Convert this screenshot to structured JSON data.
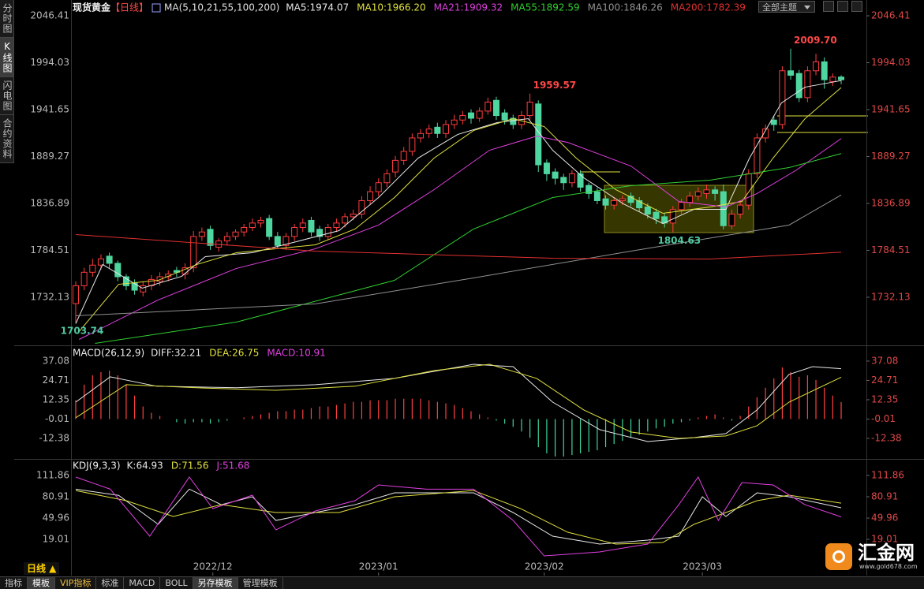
{
  "sidebar": [
    "分时图",
    "K线图",
    "闪电图",
    "合约资料"
  ],
  "theme_button": "全部主题",
  "period_button": "日线 ▲",
  "tabs": [
    "指标",
    "模板",
    "VIP指标",
    "标准",
    "MACD",
    "BOLL",
    "另存模板",
    "管理模板"
  ],
  "logo": {
    "name": "汇金网",
    "url": "www.gold678.com"
  },
  "chart_data": [
    {
      "type": "candlestick",
      "title": "现货黄金",
      "subtitle": "【日线】",
      "indicator": "MA(5,10,21,55,100,200)",
      "up_color": "#ff3c3c",
      "down_color": "#4fd6a0",
      "xlim": [
        -0.56,
        94
      ],
      "ylim": [
        1678.4,
        2057.0
      ],
      "yticks": [
        2046.41,
        1994.03,
        1941.65,
        1889.27,
        1836.89,
        1784.51,
        1732.13
      ],
      "open": [
        1725,
        1745,
        1760,
        1768,
        1778,
        1770,
        1755,
        1748,
        1738,
        1745,
        1750,
        1755,
        1762,
        1758,
        1765,
        1800,
        1808,
        1788,
        1795,
        1800,
        1805,
        1810,
        1815,
        1820,
        1800,
        1790,
        1800,
        1810,
        1818,
        1808,
        1800,
        1810,
        1815,
        1822,
        1825,
        1840,
        1850,
        1860,
        1872,
        1885,
        1895,
        1910,
        1915,
        1922,
        1915,
        1925,
        1930,
        1938,
        1932,
        1940,
        1952,
        1938,
        1932,
        1925,
        1935,
        1948,
        1882,
        1872,
        1866,
        1860,
        1870,
        1857,
        1850,
        1842,
        1835,
        1840,
        1845,
        1840,
        1833,
        1827,
        1822,
        1815,
        1830,
        1838,
        1845,
        1848,
        1852,
        1850,
        1812,
        1825,
        1835,
        1870,
        1910,
        1930,
        1925,
        1985,
        1982,
        1955,
        1985,
        1995,
        1973,
        1978
      ],
      "high": [
        1750,
        1765,
        1775,
        1780,
        1782,
        1773,
        1758,
        1752,
        1750,
        1757,
        1760,
        1762,
        1766,
        1770,
        1806,
        1810,
        1812,
        1798,
        1805,
        1808,
        1814,
        1820,
        1822,
        1824,
        1805,
        1804,
        1814,
        1820,
        1822,
        1812,
        1814,
        1820,
        1826,
        1830,
        1845,
        1856,
        1865,
        1875,
        1890,
        1900,
        1915,
        1920,
        1925,
        1927,
        1930,
        1936,
        1940,
        1942,
        1944,
        1955,
        1956,
        1942,
        1936,
        1940,
        1959.57,
        1952,
        1886,
        1876,
        1870,
        1874,
        1874,
        1860,
        1854,
        1846,
        1844,
        1846,
        1849,
        1844,
        1837,
        1831,
        1826,
        1834,
        1842,
        1850,
        1855,
        1858,
        1856,
        1858,
        1830,
        1840,
        1875,
        1915,
        1925,
        1935,
        1990,
        2009.7,
        1986,
        1990,
        2004,
        2000,
        1982,
        1980
      ],
      "low": [
        1703.74,
        1740,
        1755,
        1763,
        1765,
        1750,
        1740,
        1735,
        1733,
        1740,
        1745,
        1750,
        1755,
        1752,
        1760,
        1795,
        1785,
        1783,
        1790,
        1796,
        1800,
        1806,
        1810,
        1796,
        1786,
        1785,
        1795,
        1805,
        1800,
        1795,
        1796,
        1805,
        1810,
        1818,
        1820,
        1835,
        1845,
        1855,
        1866,
        1880,
        1890,
        1905,
        1910,
        1910,
        1910,
        1920,
        1925,
        1926,
        1928,
        1936,
        1930,
        1925,
        1920,
        1920,
        1930,
        1872,
        1862,
        1858,
        1852,
        1855,
        1850,
        1842,
        1836,
        1830,
        1830,
        1835,
        1834,
        1828,
        1820,
        1814,
        1810,
        1804.63,
        1825,
        1833,
        1840,
        1842,
        1840,
        1808,
        1808,
        1820,
        1830,
        1865,
        1905,
        1918,
        1920,
        1975,
        1950,
        1950,
        1980,
        1965,
        1968,
        1970
      ],
      "close": [
        1745,
        1760,
        1768,
        1775,
        1770,
        1755,
        1745,
        1740,
        1745,
        1752,
        1755,
        1758,
        1760,
        1765,
        1800,
        1805,
        1790,
        1795,
        1800,
        1805,
        1810,
        1815,
        1818,
        1800,
        1790,
        1800,
        1810,
        1815,
        1805,
        1800,
        1810,
        1815,
        1822,
        1825,
        1840,
        1850,
        1860,
        1870,
        1885,
        1895,
        1910,
        1915,
        1920,
        1915,
        1925,
        1930,
        1935,
        1932,
        1940,
        1950,
        1935,
        1930,
        1925,
        1935,
        1950,
        1880,
        1870,
        1865,
        1860,
        1870,
        1855,
        1848,
        1840,
        1835,
        1840,
        1842,
        1838,
        1832,
        1825,
        1820,
        1815,
        1830,
        1838,
        1845,
        1850,
        1852,
        1848,
        1812,
        1825,
        1835,
        1870,
        1910,
        1920,
        1925,
        1985,
        1980,
        1955,
        1985,
        1995,
        1975,
        1978,
        1975
      ],
      "series": [
        {
          "name": "MA5:1974.07",
          "color": "#e8e8e8",
          "x": [
            0,
            3.2,
            7.9,
            12.6,
            15.4,
            21,
            26.6,
            31.3,
            36,
            40.7,
            45.4,
            50.1,
            53.8,
            56.7,
            60.4,
            65.1,
            69.8,
            73.5,
            77.3,
            80.1,
            83.9,
            86.7,
            91
          ],
          "values": [
            1702.6,
            1768.7,
            1742.3,
            1755.5,
            1777.5,
            1781.9,
            1795.1,
            1806.5,
            1843.5,
            1887.5,
            1913.9,
            1927.1,
            1931.5,
            1896.3,
            1865.5,
            1836.5,
            1814.4,
            1830.3,
            1830.3,
            1887.5,
            1949.1,
            1966.7,
            1974.07
          ]
        },
        {
          "name": "MA10:1966.20",
          "color": "#e0e040",
          "x": [
            0.4,
            5.1,
            9.8,
            14.4,
            19.1,
            23.8,
            28.5,
            33.2,
            37.9,
            42.6,
            47.3,
            52,
            55.7,
            59.5,
            64.2,
            69.8,
            75.4,
            79.2,
            82.9,
            86.7,
            91
          ],
          "values": [
            1693.8,
            1746.6,
            1751,
            1768.7,
            1781.9,
            1786.3,
            1790.7,
            1808.3,
            1843.5,
            1887.5,
            1918.3,
            1931.5,
            1922.7,
            1887.5,
            1852.3,
            1825.9,
            1832.9,
            1839.1,
            1887.5,
            1931.5,
            1966.2
          ]
        },
        {
          "name": "MA21:1909.32",
          "color": "#e040e0",
          "x": [
            0.4,
            9.8,
            19.1,
            28.5,
            36,
            42.6,
            49.2,
            54.8,
            58.5,
            66,
            71.7,
            77.3,
            81,
            85.7,
            91
          ],
          "values": [
            1685,
            1729.1,
            1764.3,
            1786.3,
            1812.7,
            1852.3,
            1896.3,
            1912,
            1905,
            1878.7,
            1839.1,
            1832.9,
            1847.9,
            1874.3,
            1909.32
          ]
        },
        {
          "name": "MA55:1892.59",
          "color": "#30d030",
          "x": [
            2.3,
            19.1,
            37.9,
            47.3,
            56.7,
            66,
            75.4,
            84.8,
            91
          ],
          "values": [
            1680.6,
            1704.4,
            1751,
            1808.3,
            1843.5,
            1856.7,
            1862.9,
            1876.9,
            1892.59
          ]
        },
        {
          "name": "MA100:1846.26",
          "color": "#909090",
          "x": [
            0,
            28.5,
            47.3,
            66,
            84.8,
            91
          ],
          "values": [
            1711.4,
            1724.7,
            1753.7,
            1783.6,
            1812.7,
            1846.26
          ]
        },
        {
          "name": "MA200:1782.39",
          "color": "#e03030",
          "x": [
            0,
            28.5,
            56.7,
            75.4,
            91
          ],
          "values": [
            1802.1,
            1783.6,
            1775.7,
            1774.8,
            1782.39
          ]
        }
      ],
      "annotations": [
        {
          "x": 85,
          "value": 2009.7,
          "label": "2009.70",
          "color": "#ff4848"
        },
        {
          "x": 54,
          "value": 1959.57,
          "label": "1959.57",
          "color": "#ff4848"
        },
        {
          "x": 71,
          "value": 1804.63,
          "label": "1804.63",
          "color": "#4fc8a0"
        },
        {
          "x": 0,
          "value": 1703.74,
          "label": "1703.74",
          "color": "#4fc8a0"
        }
      ]
    },
    {
      "type": "macd",
      "title": "MACD(26,12,9)",
      "xlim": [
        -0.56,
        94
      ],
      "ylim": [
        -24.5,
        42.6
      ],
      "yticks": [
        37.08,
        24.71,
        12.35,
        -0.01,
        -12.38
      ],
      "histogram": {
        "name": "MACD:10.91",
        "color": "#e040e0",
        "up_color": "#ff4040",
        "down_color": "#3ed69a",
        "values": [
          12,
          22,
          28,
          30,
          31,
          28,
          22,
          15,
          8,
          4,
          2,
          0,
          -2,
          -3,
          -2,
          -2,
          -3,
          -2,
          -1,
          0,
          1,
          2,
          3,
          4,
          5,
          5,
          6,
          6,
          7,
          8,
          8,
          9,
          10,
          11,
          11,
          12,
          12,
          12,
          13,
          13,
          13,
          13,
          12,
          11,
          10,
          9,
          7,
          5,
          3,
          1,
          -1,
          -3,
          -5,
          -8,
          -12,
          -18,
          -22,
          -24,
          -24,
          -23,
          -22,
          -21,
          -20,
          -18,
          -16,
          -14,
          -12,
          -10,
          -8,
          -6,
          -5,
          -3,
          -2,
          -1,
          1,
          2,
          3,
          1,
          -1,
          2,
          8,
          14,
          20,
          26,
          33,
          30,
          27,
          28,
          25,
          20,
          15,
          10.91
        ]
      },
      "series": [
        {
          "name": "DIFF:32.21",
          "color": "#e8e8e8",
          "x": [
            0,
            4.1,
            9.6,
            19.1,
            28.5,
            37.9,
            47.3,
            52,
            56.7,
            62.3,
            68,
            73.5,
            77.3,
            81,
            84.8,
            87.6,
            91
          ],
          "values": [
            10.8,
            27,
            21,
            20,
            22,
            26,
            35,
            33.5,
            10.8,
            -6.8,
            -14.4,
            -11.9,
            -9.3,
            5.8,
            28.5,
            33.5,
            32.21
          ]
        },
        {
          "name": "DEA:26.75",
          "color": "#e0e040",
          "x": [
            0,
            6,
            14.4,
            23.8,
            33.2,
            42.6,
            49.2,
            54.8,
            60.4,
            66,
            71.7,
            77.3,
            81,
            84.8,
            91
          ],
          "values": [
            0.8,
            22,
            20,
            18.4,
            21,
            31,
            35,
            26,
            5.8,
            -8.3,
            -12.4,
            -10.8,
            -4.3,
            10.8,
            26.75
          ]
        }
      ]
    },
    {
      "type": "line",
      "title": "KDJ(9,3,3)",
      "xlim": [
        -0.56,
        94
      ],
      "ylim": [
        -28,
        126.8
      ],
      "yticks": [
        111.86,
        80.91,
        49.96,
        19.01
      ],
      "xticks": [
        {
          "value": 16.3,
          "label": "2022/12"
        },
        {
          "value": 36,
          "label": "2023/01"
        },
        {
          "value": 55.7,
          "label": "2023/02"
        },
        {
          "value": 74.5,
          "label": "2023/03"
        }
      ],
      "series": [
        {
          "name": "K:64.93",
          "color": "#e8e8e8",
          "x": [
            0,
            5.1,
            9.8,
            13.5,
            17.3,
            21,
            23.8,
            28.5,
            33.2,
            37.9,
            47.3,
            52,
            56.7,
            62.3,
            68,
            71.7,
            74.5,
            77.3,
            81,
            84.8,
            91
          ],
          "values": [
            92,
            83,
            40.8,
            92,
            69.4,
            80.9,
            46.5,
            58,
            69.4,
            86.6,
            86.6,
            58,
            23.6,
            12.1,
            17.9,
            23.6,
            80.9,
            52.3,
            86.6,
            80.9,
            64.93
          ]
        },
        {
          "name": "D:71.56",
          "color": "#e0e040",
          "x": [
            0,
            6,
            11.6,
            17.3,
            23.8,
            31.3,
            37.9,
            47.3,
            52.9,
            58.5,
            64.2,
            69.8,
            73.5,
            77.3,
            81,
            84.8,
            91
          ],
          "values": [
            90,
            75.2,
            52.3,
            69.4,
            58,
            58,
            80.9,
            90,
            63.7,
            29.3,
            12.1,
            14.4,
            40.8,
            58,
            75.2,
            83.2,
            71.56
          ]
        },
        {
          "name": "J:51.68",
          "color": "#e040e0",
          "x": [
            0,
            4.1,
            8.8,
            13.5,
            16.3,
            21,
            23.8,
            28.5,
            33.2,
            36,
            41.7,
            47.3,
            52,
            55.7,
            62.3,
            68,
            71.7,
            74,
            76.4,
            79.2,
            82.9,
            86.7,
            91
          ],
          "values": [
            109.6,
            92,
            23.6,
            109.6,
            63.7,
            83.2,
            32.8,
            60.3,
            75.2,
            98.1,
            92,
            92,
            46.5,
            -5.1,
            0.7,
            12.1,
            69.4,
            109.6,
            46.5,
            101.5,
            98.1,
            69.4,
            51.68
          ]
        }
      ]
    }
  ]
}
